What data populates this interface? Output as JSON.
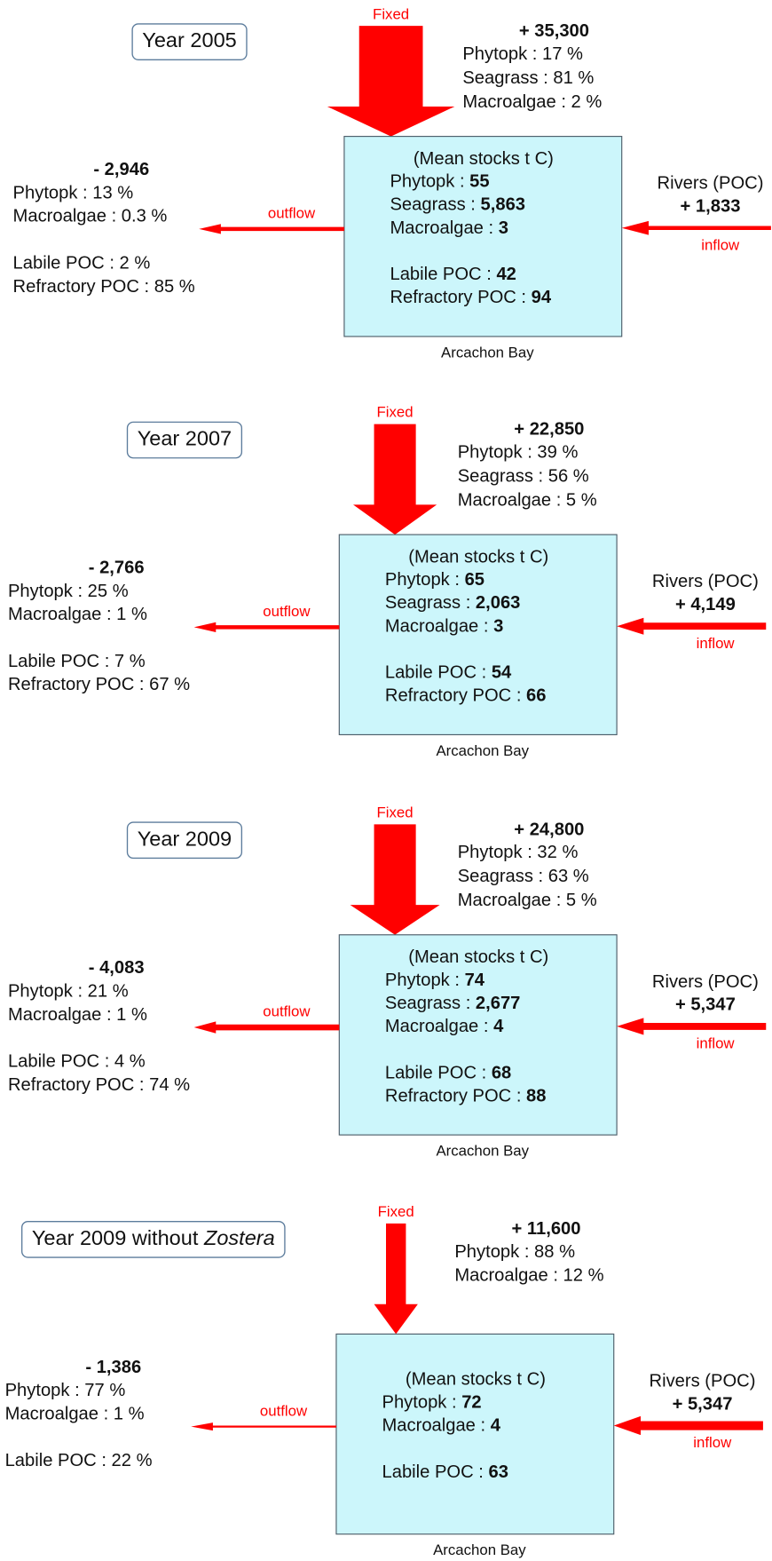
{
  "panels": [
    {
      "year": "Year 2005",
      "fixed_label": "Fixed",
      "fixed_total": "+ 35,300",
      "fixed_items": [
        "Phytopk : 17 %",
        "Seagrass : 81 %",
        "Macroalgae : 2 %"
      ],
      "stocks_title": "(Mean stocks t C)",
      "stocks": [
        [
          {
            "label": "Phytopk : ",
            "value": "55"
          },
          {
            "label": "Seagrass : ",
            "value": "5,863"
          },
          {
            "label": "Macroalgae : ",
            "value": "3"
          }
        ],
        [
          {
            "label": "Labile POC : ",
            "value": "42"
          },
          {
            "label": "Refractory POC : ",
            "value": "94"
          }
        ]
      ],
      "place": "Arcachon Bay",
      "outflow_label": "outflow",
      "outflow_total": "- 2,946",
      "outflow_items": [
        [
          "Phytopk : 13 %",
          "Macroalgae : 0.3 %"
        ],
        [
          "Labile POC : 2 %",
          "Refractory POC : 85 %"
        ]
      ],
      "inflow_source": "Rivers (POC)",
      "inflow_total": "+ 1,833",
      "inflow_label": "inflow"
    },
    {
      "year": "Year 2007",
      "fixed_label": "Fixed",
      "fixed_total": "+ 22,850",
      "fixed_items": [
        "Phytopk : 39 %",
        "Seagrass : 56 %",
        "Macroalgae : 5 %"
      ],
      "stocks_title": "(Mean stocks t C)",
      "stocks": [
        [
          {
            "label": "Phytopk : ",
            "value": "65"
          },
          {
            "label": "Seagrass : ",
            "value": "2,063"
          },
          {
            "label": "Macroalgae : ",
            "value": "3"
          }
        ],
        [
          {
            "label": "Labile POC : ",
            "value": "54"
          },
          {
            "label": "Refractory POC : ",
            "value": "66"
          }
        ]
      ],
      "place": "Arcachon Bay",
      "outflow_label": "outflow",
      "outflow_total": "- 2,766",
      "outflow_items": [
        [
          "Phytopk : 25 %",
          "Macroalgae : 1 %"
        ],
        [
          "Labile POC : 7 %",
          "Refractory POC : 67 %"
        ]
      ],
      "inflow_source": "Rivers (POC)",
      "inflow_total": "+ 4,149",
      "inflow_label": "inflow"
    },
    {
      "year": "Year 2009",
      "fixed_label": "Fixed",
      "fixed_total": "+ 24,800",
      "fixed_items": [
        "Phytopk : 32 %",
        "Seagrass : 63 %",
        "Macroalgae : 5 %"
      ],
      "stocks_title": "(Mean stocks t C)",
      "stocks": [
        [
          {
            "label": "Phytopk : ",
            "value": "74"
          },
          {
            "label": "Seagrass : ",
            "value": "2,677"
          },
          {
            "label": "Macroalgae : ",
            "value": "4"
          }
        ],
        [
          {
            "label": "Labile POC : ",
            "value": "68"
          },
          {
            "label": "Refractory POC : ",
            "value": "88"
          }
        ]
      ],
      "place": "Arcachon Bay",
      "outflow_label": "outflow",
      "outflow_total": "- 4,083",
      "outflow_items": [
        [
          "Phytopk : 21 %",
          "Macroalgae : 1 %"
        ],
        [
          "Labile POC : 4 %",
          "Refractory POC : 74 %"
        ]
      ],
      "inflow_source": "Rivers (POC)",
      "inflow_total": "+ 5,347",
      "inflow_label": "inflow"
    },
    {
      "year": "Year 2009 without ",
      "year_italic": "Zostera",
      "fixed_label": "Fixed",
      "fixed_total": "+ 11,600",
      "fixed_items": [
        "Phytopk : 88 %",
        "Macroalgae : 12 %"
      ],
      "stocks_title": "(Mean stocks t C)",
      "stocks": [
        [
          {
            "label": "Phytopk : ",
            "value": "72"
          },
          {
            "label": "Macroalgae : ",
            "value": "4"
          }
        ],
        [
          {
            "label": "Labile POC : ",
            "value": "63"
          }
        ]
      ],
      "place": "Arcachon Bay",
      "outflow_label": "outflow",
      "outflow_total": "- 1,386",
      "outflow_items": [
        [
          "Phytopk : 77 %",
          "Macroalgae : 1 %"
        ],
        [
          "Labile POC : 22 %"
        ]
      ],
      "inflow_source": "Rivers (POC)",
      "inflow_total": "+ 5,347",
      "inflow_label": "inflow"
    }
  ]
}
